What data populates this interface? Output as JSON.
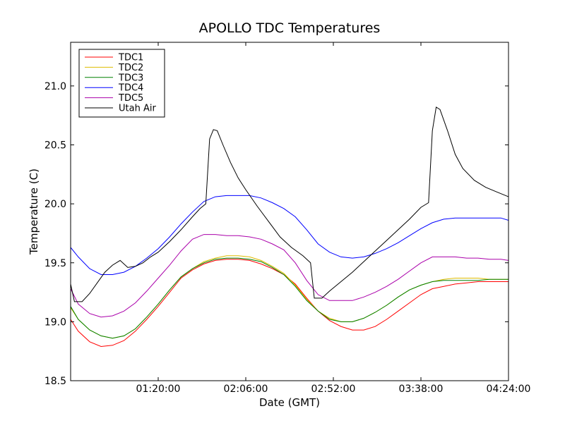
{
  "chart_data": {
    "type": "line",
    "title": "APOLLO TDC Temperatures",
    "xlabel": "Date (GMT)",
    "ylabel": "Temperature (C)",
    "xlim_minutes": [
      34,
      264
    ],
    "ylim": [
      18.5,
      21.37
    ],
    "grid": false,
    "legend_position": "top-left",
    "x_ticks": [
      {
        "minute": 80,
        "label": "01:20:00"
      },
      {
        "minute": 126,
        "label": "02:06:00"
      },
      {
        "minute": 172,
        "label": "02:52:00"
      },
      {
        "minute": 218,
        "label": "03:38:00"
      },
      {
        "minute": 264,
        "label": "04:24:00"
      }
    ],
    "y_ticks": [
      {
        "value": 18.5,
        "label": "18.5"
      },
      {
        "value": 19.0,
        "label": "19.0"
      },
      {
        "value": 19.5,
        "label": "19.5"
      },
      {
        "value": 20.0,
        "label": "20.0"
      },
      {
        "value": 20.5,
        "label": "20.5"
      },
      {
        "value": 21.0,
        "label": "21.0"
      }
    ],
    "series": [
      {
        "name": "TDC1",
        "color": "#ff0000",
        "points": [
          [
            34,
            19.02
          ],
          [
            38,
            18.92
          ],
          [
            44,
            18.83
          ],
          [
            50,
            18.79
          ],
          [
            56,
            18.8
          ],
          [
            62,
            18.84
          ],
          [
            68,
            18.92
          ],
          [
            74,
            19.02
          ],
          [
            80,
            19.13
          ],
          [
            86,
            19.25
          ],
          [
            92,
            19.37
          ],
          [
            98,
            19.44
          ],
          [
            104,
            19.49
          ],
          [
            110,
            19.52
          ],
          [
            116,
            19.53
          ],
          [
            122,
            19.53
          ],
          [
            128,
            19.52
          ],
          [
            134,
            19.49
          ],
          [
            140,
            19.45
          ],
          [
            146,
            19.4
          ],
          [
            152,
            19.32
          ],
          [
            158,
            19.2
          ],
          [
            164,
            19.09
          ],
          [
            170,
            19.01
          ],
          [
            176,
            18.96
          ],
          [
            182,
            18.93
          ],
          [
            188,
            18.93
          ],
          [
            194,
            18.96
          ],
          [
            200,
            19.02
          ],
          [
            206,
            19.09
          ],
          [
            212,
            19.16
          ],
          [
            218,
            19.23
          ],
          [
            224,
            19.28
          ],
          [
            230,
            19.3
          ],
          [
            236,
            19.32
          ],
          [
            242,
            19.33
          ],
          [
            248,
            19.34
          ],
          [
            254,
            19.34
          ],
          [
            260,
            19.34
          ],
          [
            264,
            19.34
          ]
        ]
      },
      {
        "name": "TDC2",
        "color": "#ddbb00",
        "points": [
          [
            34,
            19.12
          ],
          [
            38,
            19.02
          ],
          [
            44,
            18.93
          ],
          [
            50,
            18.88
          ],
          [
            56,
            18.86
          ],
          [
            62,
            18.88
          ],
          [
            68,
            18.94
          ],
          [
            74,
            19.04
          ],
          [
            80,
            19.15
          ],
          [
            86,
            19.27
          ],
          [
            92,
            19.38
          ],
          [
            98,
            19.45
          ],
          [
            104,
            19.51
          ],
          [
            110,
            19.54
          ],
          [
            116,
            19.56
          ],
          [
            122,
            19.56
          ],
          [
            128,
            19.55
          ],
          [
            134,
            19.52
          ],
          [
            140,
            19.47
          ],
          [
            146,
            19.41
          ],
          [
            152,
            19.31
          ],
          [
            158,
            19.19
          ],
          [
            164,
            19.09
          ],
          [
            170,
            19.03
          ],
          [
            176,
            19.0
          ],
          [
            182,
            19.0
          ],
          [
            188,
            19.03
          ],
          [
            194,
            19.08
          ],
          [
            200,
            19.14
          ],
          [
            206,
            19.21
          ],
          [
            212,
            19.27
          ],
          [
            218,
            19.31
          ],
          [
            224,
            19.34
          ],
          [
            230,
            19.36
          ],
          [
            236,
            19.37
          ],
          [
            242,
            19.37
          ],
          [
            248,
            19.37
          ],
          [
            254,
            19.36
          ],
          [
            260,
            19.36
          ],
          [
            264,
            19.36
          ]
        ]
      },
      {
        "name": "TDC3",
        "color": "#008000",
        "points": [
          [
            34,
            19.13
          ],
          [
            38,
            19.02
          ],
          [
            44,
            18.93
          ],
          [
            50,
            18.88
          ],
          [
            56,
            18.86
          ],
          [
            62,
            18.88
          ],
          [
            68,
            18.94
          ],
          [
            74,
            19.04
          ],
          [
            80,
            19.15
          ],
          [
            86,
            19.27
          ],
          [
            92,
            19.38
          ],
          [
            98,
            19.45
          ],
          [
            104,
            19.5
          ],
          [
            110,
            19.53
          ],
          [
            116,
            19.54
          ],
          [
            122,
            19.54
          ],
          [
            128,
            19.53
          ],
          [
            134,
            19.51
          ],
          [
            140,
            19.46
          ],
          [
            146,
            19.4
          ],
          [
            152,
            19.3
          ],
          [
            158,
            19.18
          ],
          [
            164,
            19.09
          ],
          [
            170,
            19.02
          ],
          [
            176,
            19.0
          ],
          [
            182,
            19.0
          ],
          [
            188,
            19.03
          ],
          [
            194,
            19.08
          ],
          [
            200,
            19.14
          ],
          [
            206,
            19.21
          ],
          [
            212,
            19.27
          ],
          [
            218,
            19.31
          ],
          [
            224,
            19.34
          ],
          [
            230,
            19.35
          ],
          [
            236,
            19.35
          ],
          [
            242,
            19.35
          ],
          [
            248,
            19.35
          ],
          [
            254,
            19.36
          ],
          [
            260,
            19.36
          ],
          [
            264,
            19.36
          ]
        ]
      },
      {
        "name": "TDC4",
        "color": "#0000ff",
        "points": [
          [
            34,
            19.63
          ],
          [
            38,
            19.55
          ],
          [
            44,
            19.45
          ],
          [
            50,
            19.4
          ],
          [
            56,
            19.4
          ],
          [
            62,
            19.42
          ],
          [
            68,
            19.47
          ],
          [
            74,
            19.54
          ],
          [
            80,
            19.62
          ],
          [
            86,
            19.72
          ],
          [
            92,
            19.83
          ],
          [
            98,
            19.93
          ],
          [
            104,
            20.02
          ],
          [
            110,
            20.06
          ],
          [
            116,
            20.07
          ],
          [
            122,
            20.07
          ],
          [
            128,
            20.07
          ],
          [
            134,
            20.05
          ],
          [
            140,
            20.01
          ],
          [
            146,
            19.96
          ],
          [
            152,
            19.89
          ],
          [
            158,
            19.78
          ],
          [
            164,
            19.66
          ],
          [
            170,
            19.59
          ],
          [
            176,
            19.55
          ],
          [
            182,
            19.54
          ],
          [
            188,
            19.55
          ],
          [
            194,
            19.58
          ],
          [
            200,
            19.62
          ],
          [
            206,
            19.67
          ],
          [
            212,
            19.73
          ],
          [
            218,
            19.79
          ],
          [
            224,
            19.84
          ],
          [
            230,
            19.87
          ],
          [
            236,
            19.88
          ],
          [
            242,
            19.88
          ],
          [
            248,
            19.88
          ],
          [
            254,
            19.88
          ],
          [
            260,
            19.88
          ],
          [
            264,
            19.86
          ]
        ]
      },
      {
        "name": "TDC5",
        "color": "#aa00aa",
        "points": [
          [
            34,
            19.28
          ],
          [
            38,
            19.15
          ],
          [
            44,
            19.07
          ],
          [
            50,
            19.04
          ],
          [
            56,
            19.05
          ],
          [
            62,
            19.09
          ],
          [
            68,
            19.16
          ],
          [
            74,
            19.26
          ],
          [
            80,
            19.37
          ],
          [
            86,
            19.48
          ],
          [
            92,
            19.6
          ],
          [
            98,
            19.7
          ],
          [
            104,
            19.74
          ],
          [
            110,
            19.74
          ],
          [
            116,
            19.73
          ],
          [
            122,
            19.73
          ],
          [
            128,
            19.72
          ],
          [
            134,
            19.7
          ],
          [
            140,
            19.66
          ],
          [
            146,
            19.61
          ],
          [
            152,
            19.5
          ],
          [
            158,
            19.35
          ],
          [
            164,
            19.23
          ],
          [
            170,
            19.18
          ],
          [
            176,
            19.18
          ],
          [
            182,
            19.18
          ],
          [
            188,
            19.21
          ],
          [
            194,
            19.25
          ],
          [
            200,
            19.3
          ],
          [
            206,
            19.36
          ],
          [
            212,
            19.43
          ],
          [
            218,
            19.5
          ],
          [
            224,
            19.55
          ],
          [
            230,
            19.55
          ],
          [
            236,
            19.55
          ],
          [
            242,
            19.54
          ],
          [
            248,
            19.54
          ],
          [
            254,
            19.53
          ],
          [
            260,
            19.53
          ],
          [
            264,
            19.52
          ]
        ]
      },
      {
        "name": "Utah Air",
        "color": "#000000",
        "points": [
          [
            34,
            19.32
          ],
          [
            36,
            19.17
          ],
          [
            40,
            19.17
          ],
          [
            44,
            19.24
          ],
          [
            48,
            19.33
          ],
          [
            52,
            19.42
          ],
          [
            56,
            19.48
          ],
          [
            60,
            19.52
          ],
          [
            64,
            19.46
          ],
          [
            68,
            19.47
          ],
          [
            72,
            19.5
          ],
          [
            76,
            19.55
          ],
          [
            80,
            19.59
          ],
          [
            86,
            19.68
          ],
          [
            92,
            19.78
          ],
          [
            98,
            19.89
          ],
          [
            102,
            19.96
          ],
          [
            105,
            20.0
          ],
          [
            107,
            20.55
          ],
          [
            109,
            20.63
          ],
          [
            111,
            20.62
          ],
          [
            114,
            20.5
          ],
          [
            118,
            20.35
          ],
          [
            122,
            20.22
          ],
          [
            126,
            20.12
          ],
          [
            132,
            19.98
          ],
          [
            138,
            19.85
          ],
          [
            144,
            19.72
          ],
          [
            150,
            19.63
          ],
          [
            156,
            19.56
          ],
          [
            160,
            19.5
          ],
          [
            162,
            19.2
          ],
          [
            166,
            19.2
          ],
          [
            170,
            19.26
          ],
          [
            176,
            19.34
          ],
          [
            182,
            19.42
          ],
          [
            188,
            19.51
          ],
          [
            194,
            19.6
          ],
          [
            200,
            19.69
          ],
          [
            206,
            19.78
          ],
          [
            212,
            19.87
          ],
          [
            218,
            19.97
          ],
          [
            222,
            20.01
          ],
          [
            224,
            20.62
          ],
          [
            226,
            20.82
          ],
          [
            228,
            20.8
          ],
          [
            232,
            20.62
          ],
          [
            236,
            20.42
          ],
          [
            240,
            20.3
          ],
          [
            246,
            20.2
          ],
          [
            252,
            20.14
          ],
          [
            258,
            20.1
          ],
          [
            264,
            20.06
          ]
        ]
      }
    ]
  }
}
